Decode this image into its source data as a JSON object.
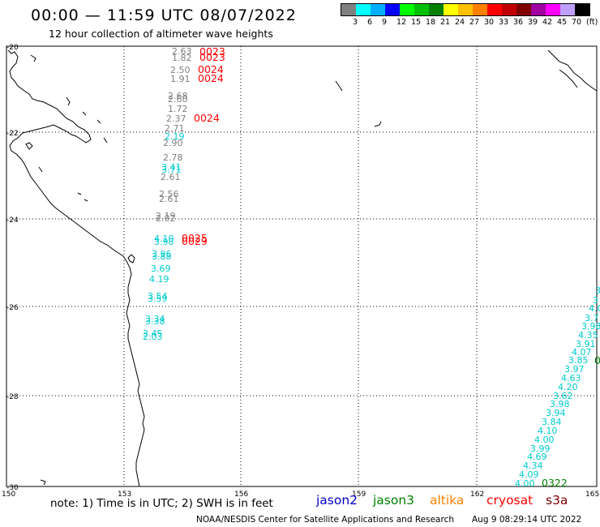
{
  "header": {
    "title": "00:00 — 11:59 UTC 08/07/2022",
    "subtitle": "12 hour collection of altimeter wave heights"
  },
  "legend": {
    "colors": [
      "#808080",
      "#00ffff",
      "#00b0ff",
      "#0000ff",
      "#00ff00",
      "#00c000",
      "#008000",
      "#ffff00",
      "#ffc000",
      "#ff8000",
      "#ff0000",
      "#c00000",
      "#800000",
      "#a000a0",
      "#ff00ff",
      "#c0a0ff",
      "#000000"
    ],
    "labels": [
      "3",
      "6",
      "9",
      "12",
      "15",
      "18",
      "21",
      "24",
      "27",
      "30",
      "33",
      "36",
      "39",
      "42",
      "45",
      "70",
      "(ft)"
    ]
  },
  "axes": {
    "lat_labels": [
      "-20",
      "-22",
      "-24",
      "-26",
      "-28",
      "-30"
    ],
    "lon_labels": [
      "150",
      "153",
      "156",
      "159",
      "162",
      "165"
    ]
  },
  "colors": {
    "jason2": "#0000c8",
    "jason3": "#008000",
    "altika": "#ff8000",
    "cryosat": "#ff0000",
    "s3a": "#800000",
    "gray_track": "#808080",
    "cyan_track": "#00cccc",
    "red_time": "#ff0000",
    "green_time": "#008000"
  },
  "observations": {
    "gray": [
      "2.63",
      "1.82",
      "2.50",
      "1.91",
      "2.68",
      "2.60",
      "1.72",
      "2.37",
      "2.71",
      "2.90",
      "2.78",
      "2.61",
      "2.56",
      "2.61",
      "2.19",
      "2.02"
    ],
    "cyan_west": [
      "2.19",
      "3.41",
      "3.71",
      "4.10",
      "3.98",
      "3.96",
      "3.88",
      "3.69",
      "4.19",
      "3.54",
      "3.59",
      "3.34",
      "3.38",
      "3.45",
      "2.03"
    ],
    "time_red": [
      "0023",
      "0023",
      "0024",
      "0024",
      "0024",
      "0025",
      "0029"
    ],
    "cyan_east": [
      "3",
      "3",
      "4.0",
      "3.7",
      "3.98",
      "4.35",
      "3.91",
      "4.07",
      "3.85",
      "3.97",
      "4.63",
      "4.20",
      "3.62",
      "3.98",
      "3.94",
      "3.84",
      "4.10",
      "4.00",
      "3.99",
      "4.69",
      "4.34",
      "4.09",
      "4.00"
    ],
    "time_green": [
      "0322",
      "0"
    ]
  },
  "footer": {
    "note": "note: 1) Time is in UTC; 2) SWH is in feet",
    "sat_jason2": "jason2",
    "sat_jason3": "jason3",
    "sat_altika": "altika",
    "sat_cryosat": "cryosat",
    "sat_s3a": "s3a",
    "credit": "NOAA/NESDIS Center for Satellite Applications and Research",
    "timestamp": "Aug  9 08:29:14 UTC 2022"
  }
}
